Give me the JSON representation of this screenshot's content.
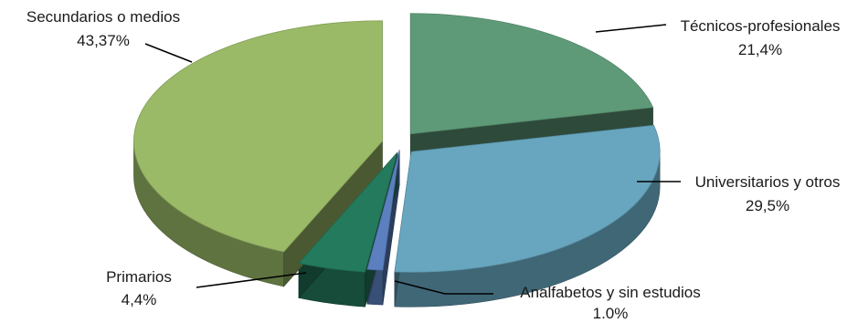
{
  "chart_data": {
    "type": "pie",
    "style": "3d-exploded",
    "slices": [
      {
        "label": "Técnicos-profesionales",
        "value_label": "21,4%",
        "value": 21.4,
        "color": "#5f9a78"
      },
      {
        "label": "Universitarios y otros",
        "value_label": "29,5%",
        "value": 29.5,
        "color": "#67a6be"
      },
      {
        "label": "Analfabetos y sin estudios",
        "value_label": "1.0%",
        "value": 1.0,
        "color": "#5b7fbf"
      },
      {
        "label": "Primarios",
        "value_label": "4,4%",
        "value": 4.4,
        "color": "#247a5c"
      },
      {
        "label": "Secundarios o medios",
        "value_label": "43,37%",
        "value": 43.37,
        "color": "#9aba68"
      }
    ],
    "legend": "none"
  }
}
